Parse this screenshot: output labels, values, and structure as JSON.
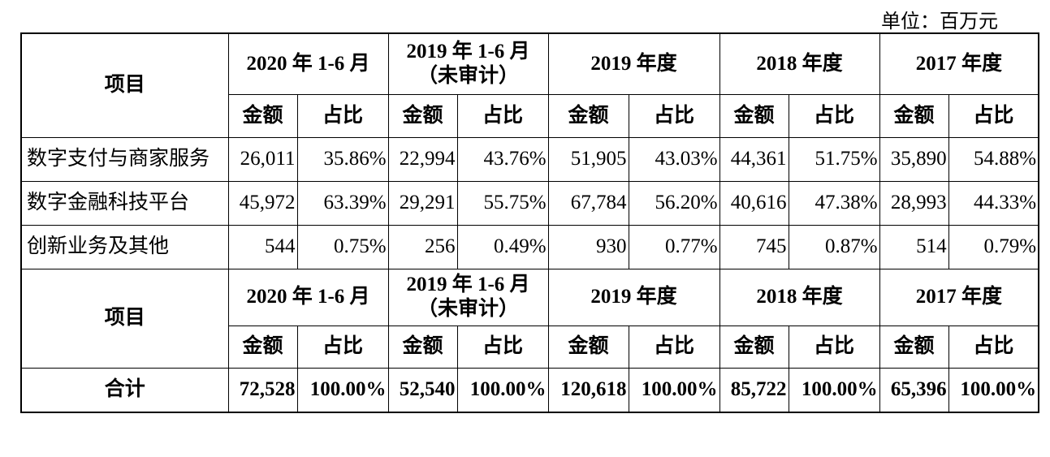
{
  "unit": "单位：百万元",
  "header": {
    "item": "项目",
    "periods": [
      [
        "2020 年 1-6 月"
      ],
      [
        "2019 年 1-6 月",
        "（未审计）"
      ],
      [
        "2019 年度"
      ],
      [
        "2018 年度"
      ],
      [
        "2017 年度"
      ]
    ],
    "sub": [
      "金额",
      "占比"
    ]
  },
  "rows": [
    {
      "label": "数字支付与商家服务",
      "cells": [
        "26,011",
        "35.86%",
        "22,994",
        "43.76%",
        "51,905",
        "43.03%",
        "44,361",
        "51.75%",
        "35,890",
        "54.88%"
      ]
    },
    {
      "label": "数字金融科技平台",
      "cells": [
        "45,972",
        "63.39%",
        "29,291",
        "55.75%",
        "67,784",
        "56.20%",
        "40,616",
        "47.38%",
        "28,993",
        "44.33%"
      ]
    },
    {
      "label": "创新业务及其他",
      "cells": [
        "544",
        "0.75%",
        "256",
        "0.49%",
        "930",
        "0.77%",
        "745",
        "0.87%",
        "514",
        "0.79%"
      ]
    }
  ],
  "total": {
    "label": "合计",
    "cells": [
      "72,528",
      "100.00%",
      "52,540",
      "100.00%",
      "120,618",
      "100.00%",
      "85,722",
      "100.00%",
      "65,396",
      "100.00%"
    ]
  }
}
